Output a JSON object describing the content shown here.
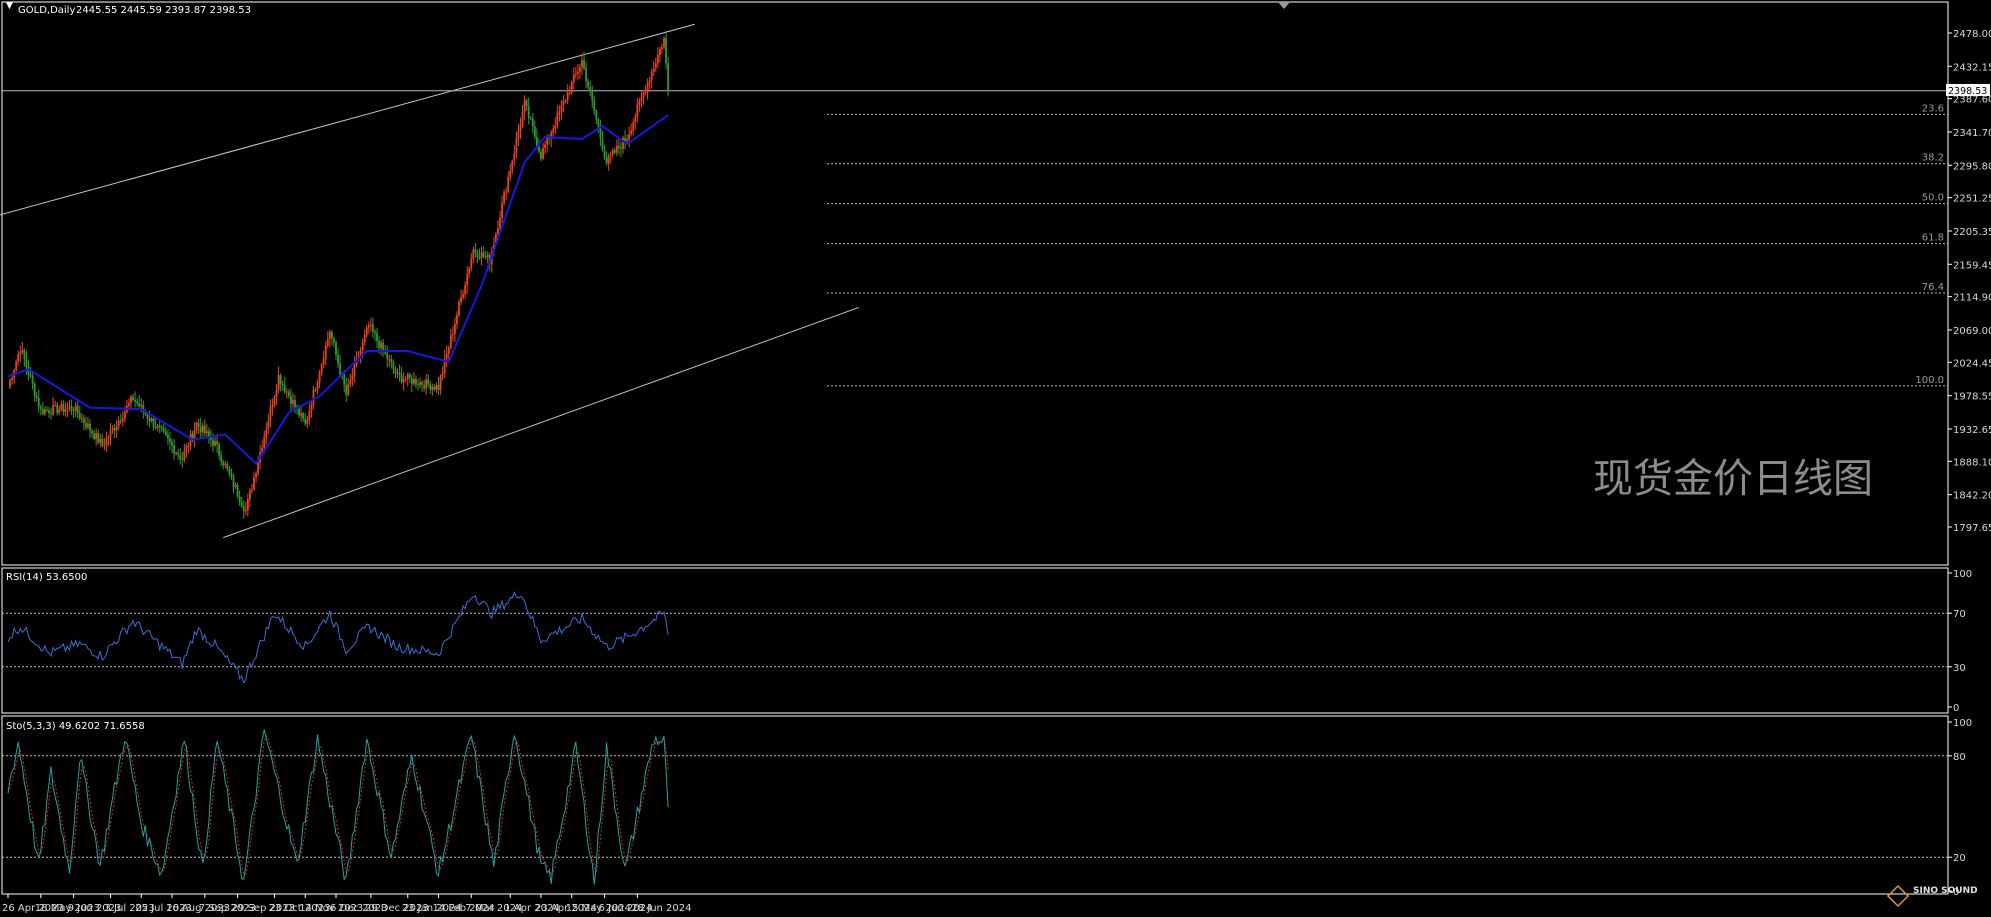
{
  "main_header": {
    "symbol": "GOLD,Daily",
    "ohlc": "2445.55 2445.59 2393.87 2398.53"
  },
  "current_price_label": "2398.53",
  "watermark": "现货金价日线图",
  "logo_text": "SINO SOUND",
  "rsi_header": "RSI(14) 53.6500",
  "sto_header": "Sto(5,3,3) 49.6202 71.6558",
  "colors": {
    "background": "#000000",
    "up_candle": "#e8451f",
    "down_candle": "#2e9d2e",
    "ma_line": "#1717e0",
    "rsi_line": "#3b6fd6",
    "sto_main": "#1fa3a3",
    "sto_signal": "#d42a2a",
    "frame": "#ffffff"
  },
  "chart_data": [
    {
      "type": "candlestick",
      "title": "GOLD,Daily",
      "ylim": [
        1780,
        2500
      ],
      "y_ticks": [
        2478.0,
        2432.15,
        2387.6,
        2341.7,
        2295.8,
        2251.25,
        2205.35,
        2159.45,
        2114.9,
        2069.0,
        2024.45,
        1978.55,
        1932.65,
        1888.1,
        1842.2,
        1797.65
      ],
      "x_ticks": [
        "26 Apr 2023",
        "18 May 2023",
        "9 Jun 2023",
        "3 Jul 2023",
        "25 Jul 2023",
        "16 Aug 2023",
        "7 Sep 2023",
        "29 Sep 2023",
        "23 Oct 2023",
        "14 Nov 2023",
        "6 Dec 2023",
        "29 Dec 2023",
        "23 Jan 2024",
        "14 Feb 2024",
        "7 Mar 2024",
        "1 Apr 2024",
        "23 Apr 2024",
        "15 May 2024",
        "6 Jun 2024",
        "28 Jun 2024"
      ],
      "price_anchors": [
        {
          "date": "2023-04-26",
          "close": 1990
        },
        {
          "date": "2023-05-04",
          "close": 2045
        },
        {
          "date": "2023-05-18",
          "close": 1958
        },
        {
          "date": "2023-06-09",
          "close": 1962
        },
        {
          "date": "2023-06-29",
          "close": 1910
        },
        {
          "date": "2023-07-20",
          "close": 1975
        },
        {
          "date": "2023-08-21",
          "close": 1892
        },
        {
          "date": "2023-09-01",
          "close": 1940
        },
        {
          "date": "2023-09-14",
          "close": 1912
        },
        {
          "date": "2023-10-05",
          "close": 1820
        },
        {
          "date": "2023-10-27",
          "close": 2005
        },
        {
          "date": "2023-11-13",
          "close": 1938
        },
        {
          "date": "2023-12-01",
          "close": 2068
        },
        {
          "date": "2023-12-13",
          "close": 1980
        },
        {
          "date": "2023-12-28",
          "close": 2075
        },
        {
          "date": "2024-01-17",
          "close": 2005
        },
        {
          "date": "2024-02-14",
          "close": 1990
        },
        {
          "date": "2024-03-08",
          "close": 2180
        },
        {
          "date": "2024-03-20",
          "close": 2165
        },
        {
          "date": "2024-04-12",
          "close": 2380
        },
        {
          "date": "2024-04-23",
          "close": 2310
        },
        {
          "date": "2024-05-20",
          "close": 2440
        },
        {
          "date": "2024-06-07",
          "close": 2300
        },
        {
          "date": "2024-06-21",
          "close": 2335
        },
        {
          "date": "2024-07-17",
          "close": 2470
        },
        {
          "date": "2024-07-19",
          "close": 2398.53
        }
      ],
      "moving_average_anchors": [
        {
          "date": "2023-04-26",
          "value": 2005
        },
        {
          "date": "2023-05-10",
          "value": 2015
        },
        {
          "date": "2023-06-19",
          "value": 1962
        },
        {
          "date": "2023-07-26",
          "value": 1960
        },
        {
          "date": "2023-08-28",
          "value": 1918
        },
        {
          "date": "2023-09-21",
          "value": 1925
        },
        {
          "date": "2023-10-12",
          "value": 1885
        },
        {
          "date": "2023-11-03",
          "value": 1955
        },
        {
          "date": "2023-11-24",
          "value": 1978
        },
        {
          "date": "2023-12-26",
          "value": 2040
        },
        {
          "date": "2024-01-22",
          "value": 2040
        },
        {
          "date": "2024-02-19",
          "value": 2025
        },
        {
          "date": "2024-03-14",
          "value": 2130
        },
        {
          "date": "2024-04-12",
          "value": 2300
        },
        {
          "date": "2024-04-26",
          "value": 2335
        },
        {
          "date": "2024-05-21",
          "value": 2332
        },
        {
          "date": "2024-06-03",
          "value": 2350
        },
        {
          "date": "2024-06-21",
          "value": 2325
        },
        {
          "date": "2024-07-19",
          "value": 2365
        }
      ],
      "fibonacci_levels": [
        {
          "label": "23.6",
          "price": 2366
        },
        {
          "label": "38.2",
          "price": 2298
        },
        {
          "label": "50.0",
          "price": 2243
        },
        {
          "label": "61.8",
          "price": 2188
        },
        {
          "label": "76.4",
          "price": 2120
        },
        {
          "label": "100.0",
          "price": 1992
        }
      ],
      "horizontal_line_price": 2398.53,
      "channel_upper": [
        {
          "date": "2023-04-20",
          "price": 2222
        },
        {
          "date": "2024-08-05",
          "price": 2490
        }
      ],
      "channel_lower": [
        {
          "date": "2023-09-20",
          "price": 1783
        },
        {
          "date": "2024-11-27",
          "price": 2100
        }
      ]
    },
    {
      "type": "line",
      "title": "RSI(14) 53.6500",
      "ylim": [
        0,
        100
      ],
      "y_ticks": [
        100,
        70,
        30,
        0
      ],
      "levels": [
        70,
        30
      ],
      "anchors": [
        {
          "date": "2023-04-26",
          "value": 52
        },
        {
          "date": "2023-05-04",
          "value": 60
        },
        {
          "date": "2023-05-22",
          "value": 40
        },
        {
          "date": "2023-06-12",
          "value": 47
        },
        {
          "date": "2023-06-29",
          "value": 38
        },
        {
          "date": "2023-07-20",
          "value": 64
        },
        {
          "date": "2023-08-21",
          "value": 32
        },
        {
          "date": "2023-09-01",
          "value": 58
        },
        {
          "date": "2023-09-14",
          "value": 46
        },
        {
          "date": "2023-10-04",
          "value": 20
        },
        {
          "date": "2023-10-23",
          "value": 70
        },
        {
          "date": "2023-11-13",
          "value": 45
        },
        {
          "date": "2023-12-01",
          "value": 70
        },
        {
          "date": "2023-12-13",
          "value": 43
        },
        {
          "date": "2023-12-28",
          "value": 60
        },
        {
          "date": "2024-01-17",
          "value": 45
        },
        {
          "date": "2024-02-14",
          "value": 40
        },
        {
          "date": "2024-03-08",
          "value": 85
        },
        {
          "date": "2024-03-21",
          "value": 70
        },
        {
          "date": "2024-04-08",
          "value": 86
        },
        {
          "date": "2024-04-23",
          "value": 50
        },
        {
          "date": "2024-05-20",
          "value": 66
        },
        {
          "date": "2024-06-07",
          "value": 45
        },
        {
          "date": "2024-06-21",
          "value": 52
        },
        {
          "date": "2024-07-16",
          "value": 70
        },
        {
          "date": "2024-07-19",
          "value": 53.65
        }
      ]
    },
    {
      "type": "line",
      "title": "Sto(5,3,3) 49.6202 71.6558",
      "ylim": [
        0,
        100
      ],
      "y_ticks": [
        100,
        80,
        20,
        0
      ],
      "levels": [
        80,
        20
      ],
      "main_last": 49.6202,
      "signal_last": 71.6558,
      "anchors": [
        {
          "date": "2023-04-26",
          "value": 60
        },
        {
          "date": "2023-05-03",
          "value": 88
        },
        {
          "date": "2023-05-15",
          "value": 15
        },
        {
          "date": "2023-05-25",
          "value": 70
        },
        {
          "date": "2023-06-05",
          "value": 12
        },
        {
          "date": "2023-06-14",
          "value": 80
        },
        {
          "date": "2023-06-28",
          "value": 15
        },
        {
          "date": "2023-07-14",
          "value": 92
        },
        {
          "date": "2023-07-26",
          "value": 40
        },
        {
          "date": "2023-08-07",
          "value": 10
        },
        {
          "date": "2023-08-24",
          "value": 90
        },
        {
          "date": "2023-09-06",
          "value": 12
        },
        {
          "date": "2023-09-15",
          "value": 90
        },
        {
          "date": "2023-10-03",
          "value": 5
        },
        {
          "date": "2023-10-16",
          "value": 95
        },
        {
          "date": "2023-11-09",
          "value": 15
        },
        {
          "date": "2023-11-23",
          "value": 90
        },
        {
          "date": "2023-12-12",
          "value": 5
        },
        {
          "date": "2023-12-26",
          "value": 90
        },
        {
          "date": "2024-01-12",
          "value": 20
        },
        {
          "date": "2024-01-26",
          "value": 80
        },
        {
          "date": "2024-02-14",
          "value": 10
        },
        {
          "date": "2024-03-07",
          "value": 92
        },
        {
          "date": "2024-03-22",
          "value": 15
        },
        {
          "date": "2024-04-05",
          "value": 95
        },
        {
          "date": "2024-04-22",
          "value": 15
        },
        {
          "date": "2024-05-01",
          "value": 8
        },
        {
          "date": "2024-05-17",
          "value": 85
        },
        {
          "date": "2024-05-30",
          "value": 5
        },
        {
          "date": "2024-06-07",
          "value": 85
        },
        {
          "date": "2024-06-20",
          "value": 12
        },
        {
          "date": "2024-07-09",
          "value": 90
        },
        {
          "date": "2024-07-16",
          "value": 88
        },
        {
          "date": "2024-07-19",
          "value": 49.62
        }
      ]
    }
  ]
}
